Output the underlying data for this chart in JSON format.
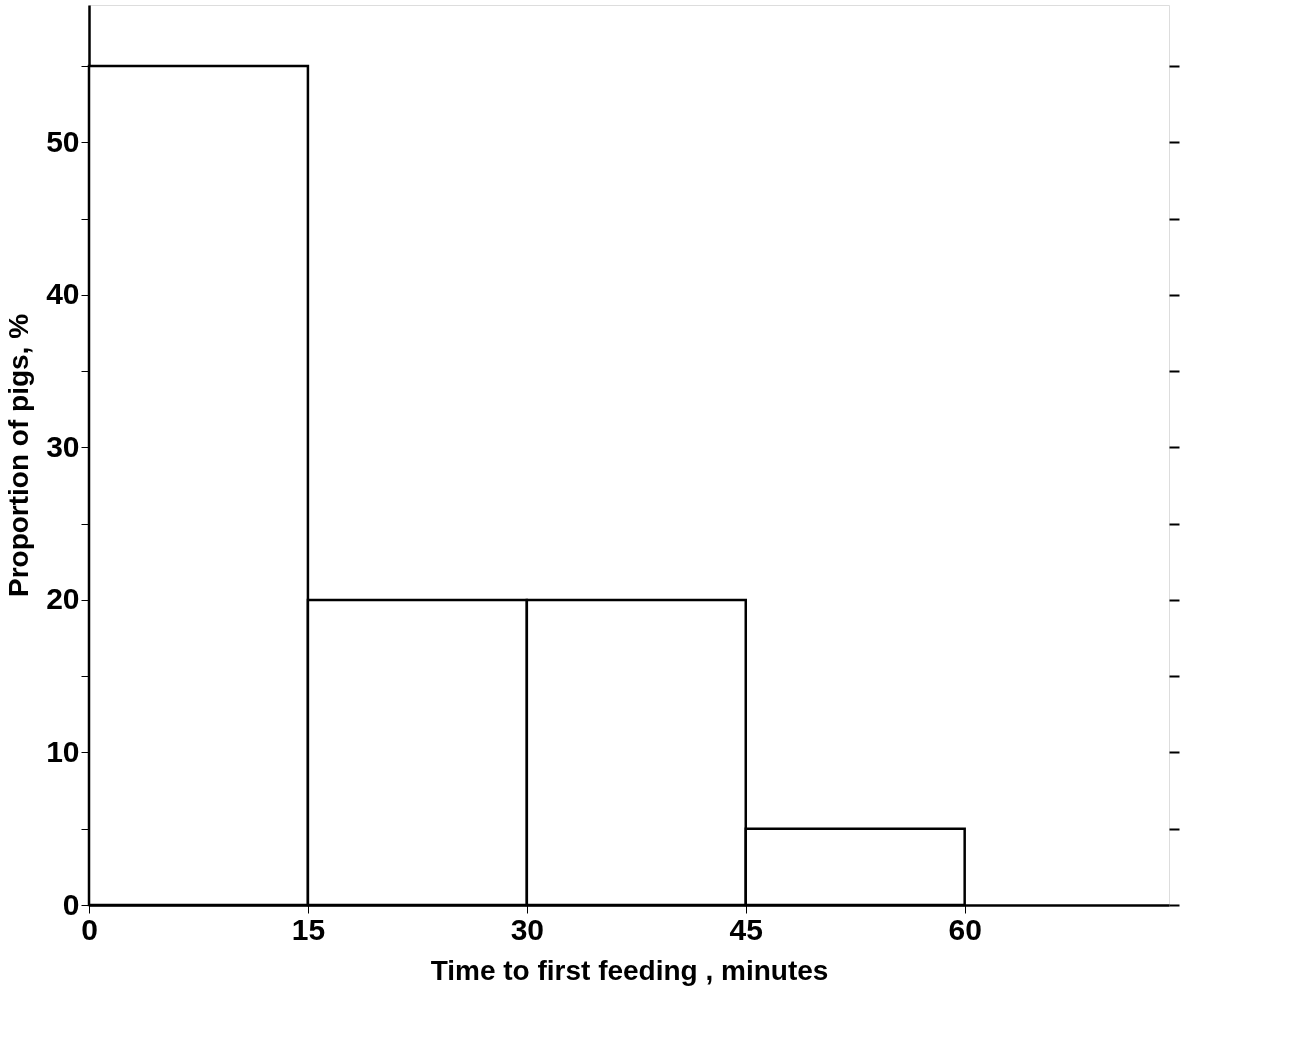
{
  "chart_data": {
    "type": "histogram",
    "xlabel": "Time to first feeding , minutes",
    "ylabel": "Proportion of pigs, %",
    "bins": [
      0,
      15,
      30,
      45,
      60
    ],
    "values": [
      55,
      20,
      20,
      5
    ],
    "color": "#000000",
    "xlim": [
      0,
      74
    ],
    "xticks": [
      0,
      15,
      30,
      45,
      60
    ],
    "ylim": [
      0,
      59
    ],
    "yticks": [
      0,
      {
        "value": 5,
        "label": null
      },
      10,
      {
        "value": 15,
        "label": null
      },
      20,
      {
        "value": 25,
        "label": null
      },
      30,
      {
        "value": 35,
        "label": null
      },
      40,
      {
        "value": 45,
        "label": null
      },
      50,
      {
        "value": 55,
        "label": null
      }
    ],
    "grid": false
  }
}
